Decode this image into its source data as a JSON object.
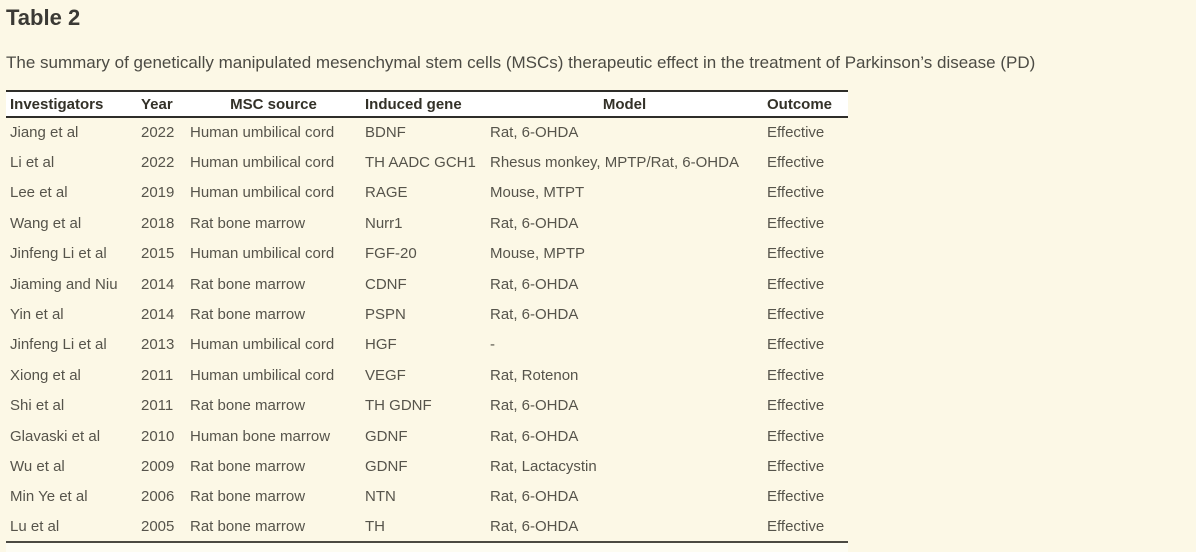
{
  "page": {
    "title": "Table 2",
    "caption": "The summary of genetically manipulated mesenchymal stem cells (MSCs) therapeutic effect in the treatment of Parkinson’s disease (PD)"
  },
  "table": {
    "columns": [
      {
        "label": "Investigators",
        "align": "left"
      },
      {
        "label": "Year",
        "align": "left"
      },
      {
        "label": "MSC source",
        "align": "center"
      },
      {
        "label": "Induced gene",
        "align": "left"
      },
      {
        "label": "Model",
        "align": "center"
      },
      {
        "label": "Outcome",
        "align": "left"
      }
    ],
    "rows": [
      [
        "Jiang et al",
        "2022",
        "Human umbilical cord",
        "BDNF",
        "Rat, 6-OHDA",
        "Effective"
      ],
      [
        "Li et al",
        "2022",
        "Human umbilical cord",
        "TH AADC GCH1",
        "Rhesus monkey, MPTP/Rat, 6-OHDA",
        "Effective"
      ],
      [
        "Lee et al",
        "2019",
        "Human umbilical cord",
        "RAGE",
        "Mouse, MTPT",
        "Effective"
      ],
      [
        "Wang et al",
        "2018",
        "Rat bone marrow",
        "Nurr1",
        "Rat, 6-OHDA",
        "Effective"
      ],
      [
        "Jinfeng Li et al",
        "2015",
        "Human umbilical cord",
        "FGF-20",
        "Mouse, MPTP",
        "Effective"
      ],
      [
        "Jiaming and Niu",
        "2014",
        "Rat bone marrow",
        "CDNF",
        "Rat, 6-OHDA",
        "Effective"
      ],
      [
        "Yin et al",
        "2014",
        "Rat bone marrow",
        "PSPN",
        "Rat, 6-OHDA",
        "Effective"
      ],
      [
        "Jinfeng Li et al",
        "2013",
        "Human umbilical cord",
        "HGF",
        "-",
        "Effective"
      ],
      [
        "Xiong et al",
        "2011",
        "Human umbilical cord",
        "VEGF",
        "Rat, Rotenon",
        "Effective"
      ],
      [
        "Shi et al",
        "2011",
        "Rat bone marrow",
        "TH GDNF",
        "Rat, 6-OHDA",
        "Effective"
      ],
      [
        "Glavaski et al",
        "2010",
        "Human bone marrow",
        "GDNF",
        "Rat, 6-OHDA",
        "Effective"
      ],
      [
        "Wu et al",
        "2009",
        "Rat bone marrow",
        "GDNF",
        "Rat, Lactacystin",
        "Effective"
      ],
      [
        "Min Ye et al",
        "2006",
        "Rat bone marrow",
        "NTN",
        "Rat, 6-OHDA",
        "Effective"
      ],
      [
        "Lu et al",
        "2005",
        "Rat bone marrow",
        "TH",
        "Rat, 6-OHDA",
        "Effective"
      ]
    ]
  },
  "colors": {
    "background": "#fcf8e6",
    "header_background": "#ffffff",
    "border_dark": "#2e2d29",
    "border_bottom": "#4b4a43",
    "text_body": "#56544b",
    "text_header": "#333128",
    "text_title": "#3b3a35",
    "text_caption": "#4c4b44",
    "footer_strip": "#fdfcf2"
  }
}
